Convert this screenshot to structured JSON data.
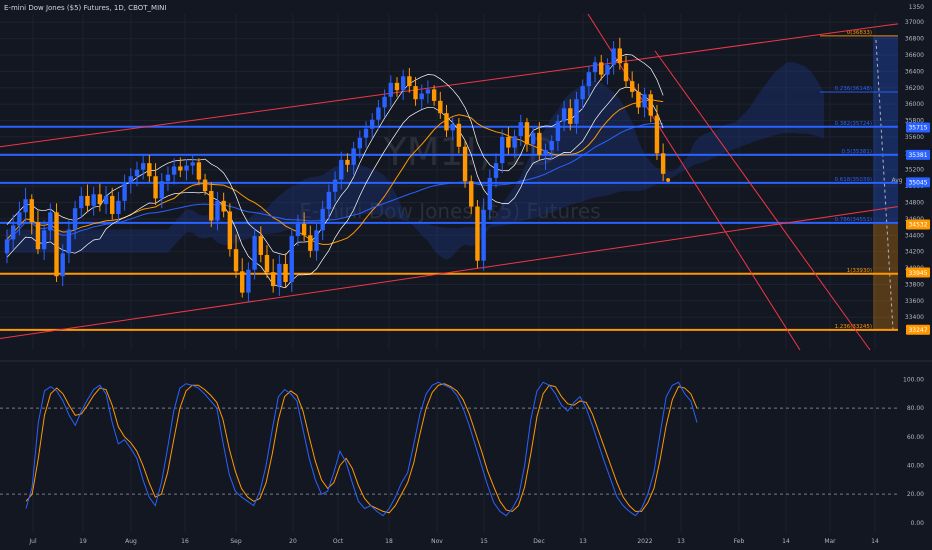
{
  "chart_title": "E-mini Dow Jones ($5) Futures, 1D, CBOT_MINI",
  "watermark": {
    "symbol": "YM1!, 1D",
    "name": "E-mini Dow Jones ($5) Futures"
  },
  "colors": {
    "background": "#131722",
    "up": "#2962ff",
    "down": "#ff9800",
    "fib": "#2962ff",
    "fib_orange": "#ff9800",
    "trend": "#f23645",
    "cloud": "#1e3a8a",
    "stoch_k": "#2962ff",
    "stoch_d": "#ff9800",
    "sma": "#ff9800",
    "bb": "#ffffff",
    "ema": "#2962ff"
  },
  "chart_data": [
    {
      "type": "candlestick",
      "symbol": "YM1!",
      "timeframe": "1D",
      "exchange": "CBOT_MINI",
      "ylim": [
        33000,
        37100
      ],
      "y_axis_ticks": [
        37000,
        36800,
        36600,
        36400,
        36200,
        36000,
        35800,
        35600,
        35400,
        35200,
        35000,
        34800,
        34600,
        34400,
        34200,
        34000,
        33800,
        33600,
        33400
      ],
      "top_partial_tick": "1350",
      "x_axis_labels": [
        "Jul",
        "19",
        "Aug",
        "16",
        "Sep",
        "20",
        "Oct",
        "18",
        "Nov",
        "15",
        "Dec",
        "13",
        "2022",
        "13",
        "Feb",
        "14",
        "Mar",
        "14"
      ],
      "current_price": 35075,
      "price_badges": [
        {
          "label": "35715",
          "value": 35715,
          "color": "#2962ff"
        },
        {
          "label": "35381",
          "value": 35381,
          "color": "#2962ff"
        },
        {
          "label": "35075",
          "value": 35075,
          "color": "#131722"
        },
        {
          "label": "35045",
          "value": 35045,
          "color": "#2962ff"
        },
        {
          "label": "34532",
          "value": 34532,
          "color": "#ff9800"
        },
        {
          "label": "33945",
          "value": 33945,
          "color": "#ff9800"
        },
        {
          "label": "33247",
          "value": 33247,
          "color": "#ff9800"
        }
      ],
      "avg_label": "Avg",
      "fib_levels": [
        {
          "ratio": "0",
          "label": "0(36833)",
          "value": 36833,
          "color": "#ff9800"
        },
        {
          "ratio": "0.236",
          "label": "0.236(36148)",
          "value": 36148,
          "color": "#2962ff"
        },
        {
          "ratio": "0.382",
          "label": "0.382(35724)",
          "value": 35724,
          "color": "#2962ff"
        },
        {
          "ratio": "0.5",
          "label": "0.5(35381)",
          "value": 35381,
          "color": "#2962ff"
        },
        {
          "ratio": "0.618",
          "label": "0.618(35039)",
          "value": 35039,
          "color": "#2962ff"
        },
        {
          "ratio": "0.786",
          "label": "0.786(34551)",
          "value": 34551,
          "color": "#2962ff"
        },
        {
          "ratio": "1",
          "label": "1(33930)",
          "value": 33930,
          "color": "#ff9800"
        },
        {
          "ratio": "1.236",
          "label": "1.236(33245)",
          "value": 33245,
          "color": "#ff9800"
        }
      ],
      "candles": [
        [
          34180,
          34470,
          34060,
          34350
        ],
        [
          34350,
          34650,
          34230,
          34520
        ],
        [
          34520,
          34810,
          34400,
          34680
        ],
        [
          34680,
          34980,
          34560,
          34840
        ],
        [
          34840,
          34900,
          34410,
          34560
        ],
        [
          34560,
          34700,
          34170,
          34230
        ],
        [
          34230,
          34580,
          34100,
          34460
        ],
        [
          34460,
          34790,
          34340,
          34680
        ],
        [
          34680,
          34790,
          33830,
          33900
        ],
        [
          33900,
          34290,
          33780,
          34180
        ],
        [
          34180,
          34580,
          34060,
          34470
        ],
        [
          34470,
          34820,
          34350,
          34730
        ],
        [
          34730,
          34990,
          34610,
          34880
        ],
        [
          34880,
          35020,
          34680,
          34760
        ],
        [
          34760,
          34990,
          34640,
          34900
        ],
        [
          34900,
          35030,
          34690,
          34780
        ],
        [
          34780,
          35000,
          34660,
          34880
        ],
        [
          34880,
          34980,
          34590,
          34660
        ],
        [
          34660,
          34930,
          34540,
          34820
        ],
        [
          34820,
          35140,
          34700,
          35030
        ],
        [
          35030,
          35220,
          34910,
          35120
        ],
        [
          35120,
          35300,
          35000,
          35200
        ],
        [
          35200,
          35390,
          35080,
          35280
        ],
        [
          35280,
          35380,
          35050,
          35120
        ],
        [
          35120,
          35280,
          34770,
          34850
        ],
        [
          34850,
          35160,
          34730,
          35060
        ],
        [
          35060,
          35240,
          34940,
          35140
        ],
        [
          35140,
          35340,
          35020,
          35240
        ],
        [
          35240,
          35350,
          35110,
          35190
        ],
        [
          35190,
          35330,
          35070,
          35250
        ],
        [
          35250,
          35390,
          35140,
          35290
        ],
        [
          35290,
          35340,
          35010,
          35080
        ],
        [
          35080,
          35150,
          34890,
          34940
        ],
        [
          34940,
          35050,
          34500,
          34580
        ],
        [
          34580,
          34930,
          34460,
          34820
        ],
        [
          34820,
          34920,
          34620,
          34690
        ],
        [
          34690,
          34790,
          34140,
          34230
        ],
        [
          34230,
          34410,
          33880,
          33960
        ],
        [
          33960,
          34120,
          33640,
          33700
        ],
        [
          33700,
          34070,
          33580,
          33980
        ],
        [
          33980,
          34490,
          33860,
          34390
        ],
        [
          34390,
          34510,
          34070,
          34160
        ],
        [
          34160,
          34280,
          33880,
          33950
        ],
        [
          33950,
          34110,
          33700,
          33780
        ],
        [
          33780,
          34160,
          33660,
          34050
        ],
        [
          34050,
          34180,
          33760,
          33830
        ],
        [
          33830,
          34480,
          33710,
          34390
        ],
        [
          34390,
          34650,
          34270,
          34540
        ],
        [
          34540,
          34680,
          34330,
          34400
        ],
        [
          34400,
          34520,
          34130,
          34210
        ],
        [
          34210,
          34560,
          34090,
          34460
        ],
        [
          34460,
          34820,
          34340,
          34720
        ],
        [
          34720,
          35020,
          34600,
          34930
        ],
        [
          34930,
          35180,
          34810,
          35080
        ],
        [
          35080,
          35420,
          34960,
          35320
        ],
        [
          35320,
          35400,
          35170,
          35260
        ],
        [
          35260,
          35540,
          35140,
          35460
        ],
        [
          35460,
          35680,
          35340,
          35590
        ],
        [
          35590,
          35790,
          35470,
          35700
        ],
        [
          35700,
          35890,
          35580,
          35810
        ],
        [
          35810,
          36050,
          35690,
          35960
        ],
        [
          35960,
          36180,
          35840,
          36090
        ],
        [
          36090,
          36350,
          35970,
          36260
        ],
        [
          36260,
          36330,
          36090,
          36170
        ],
        [
          36170,
          36420,
          36050,
          36340
        ],
        [
          36340,
          36440,
          36140,
          36220
        ],
        [
          36220,
          36330,
          35980,
          36060
        ],
        [
          36060,
          36240,
          35940,
          36130
        ],
        [
          36130,
          36290,
          36010,
          36180
        ],
        [
          36180,
          36230,
          35980,
          36040
        ],
        [
          36040,
          36150,
          35820,
          35890
        ],
        [
          35890,
          35990,
          35600,
          35680
        ],
        [
          35680,
          35840,
          35560,
          35760
        ],
        [
          35760,
          35830,
          35400,
          35480
        ],
        [
          35480,
          35550,
          34980,
          35060
        ],
        [
          35060,
          35130,
          34660,
          34750
        ],
        [
          34750,
          34830,
          34000,
          34090
        ],
        [
          34090,
          34850,
          33970,
          34710
        ],
        [
          34710,
          35200,
          34590,
          35100
        ],
        [
          35100,
          35400,
          34980,
          35280
        ],
        [
          35280,
          35690,
          35160,
          35600
        ],
        [
          35600,
          35720,
          35390,
          35470
        ],
        [
          35470,
          35690,
          35350,
          35610
        ],
        [
          35610,
          35870,
          35490,
          35780
        ],
        [
          35780,
          35830,
          35420,
          35510
        ],
        [
          35510,
          35720,
          35390,
          35650
        ],
        [
          35650,
          35780,
          35310,
          35380
        ],
        [
          35380,
          35520,
          35200,
          35440
        ],
        [
          35440,
          35620,
          35320,
          35550
        ],
        [
          35550,
          35870,
          35430,
          35790
        ],
        [
          35790,
          36040,
          35670,
          35950
        ],
        [
          35950,
          36060,
          35680,
          35760
        ],
        [
          35760,
          36150,
          35640,
          36060
        ],
        [
          36060,
          36300,
          35940,
          36220
        ],
        [
          36220,
          36470,
          36100,
          36390
        ],
        [
          36390,
          36580,
          36270,
          36510
        ],
        [
          36510,
          36600,
          36290,
          36360
        ],
        [
          36360,
          36560,
          36240,
          36480
        ],
        [
          36480,
          36770,
          36360,
          36680
        ],
        [
          36680,
          36810,
          36420,
          36500
        ],
        [
          36500,
          36590,
          36200,
          36280
        ],
        [
          36280,
          36400,
          36080,
          36150
        ],
        [
          36150,
          36250,
          35880,
          35960
        ],
        [
          35960,
          36200,
          35840,
          36120
        ],
        [
          36120,
          36170,
          35780,
          35860
        ],
        [
          35860,
          35990,
          35320,
          35400
        ],
        [
          35400,
          35520,
          35060,
          35150
        ]
      ],
      "overlays": [
        "ichimoku cloud",
        "bollinger bands",
        "sma",
        "ema",
        "fibonacci retracement",
        "trend channel"
      ]
    },
    {
      "type": "line",
      "name": "Stochastic",
      "ylim": [
        -5,
        108
      ],
      "y_axis_ticks": [
        "100.00",
        "80.00",
        "60.00",
        "40.00",
        "20.00",
        "0.00"
      ],
      "dashed_levels": [
        80,
        20
      ],
      "k_values": [
        10,
        25,
        70,
        92,
        95,
        92,
        85,
        75,
        68,
        78,
        86,
        93,
        96,
        90,
        70,
        55,
        58,
        52,
        45,
        30,
        18,
        12,
        28,
        52,
        78,
        94,
        97,
        96,
        94,
        90,
        85,
        80,
        56,
        34,
        22,
        18,
        15,
        12,
        22,
        40,
        65,
        88,
        93,
        90,
        85,
        65,
        45,
        30,
        20,
        22,
        35,
        50,
        42,
        28,
        15,
        10,
        12,
        8,
        5,
        10,
        18,
        28,
        35,
        55,
        76,
        90,
        96,
        98,
        96,
        94,
        89,
        80,
        68,
        54,
        40,
        26,
        14,
        8,
        5,
        10,
        18,
        40,
        72,
        92,
        98,
        96,
        90,
        82,
        78,
        84,
        88,
        80,
        68,
        55,
        42,
        30,
        18,
        12,
        8,
        5,
        10,
        20,
        35,
        62,
        88,
        96,
        98,
        90,
        85,
        70
      ],
      "d_values": [
        15,
        20,
        45,
        75,
        90,
        94,
        90,
        82,
        75,
        76,
        82,
        89,
        94,
        93,
        82,
        67,
        60,
        56,
        50,
        40,
        28,
        18,
        20,
        35,
        58,
        80,
        92,
        96,
        96,
        93,
        89,
        84,
        72,
        52,
        36,
        24,
        18,
        15,
        17,
        28,
        48,
        72,
        88,
        92,
        89,
        78,
        60,
        43,
        30,
        24,
        28,
        40,
        45,
        38,
        26,
        17,
        12,
        10,
        8,
        7,
        12,
        20,
        28,
        42,
        62,
        80,
        91,
        96,
        97,
        95,
        92,
        86,
        76,
        63,
        50,
        36,
        25,
        15,
        9,
        8,
        12,
        25,
        48,
        74,
        90,
        96,
        95,
        88,
        83,
        82,
        85,
        84,
        76,
        64,
        52,
        40,
        28,
        18,
        12,
        8,
        8,
        14,
        24,
        44,
        68,
        86,
        95,
        94,
        90,
        80
      ]
    }
  ]
}
